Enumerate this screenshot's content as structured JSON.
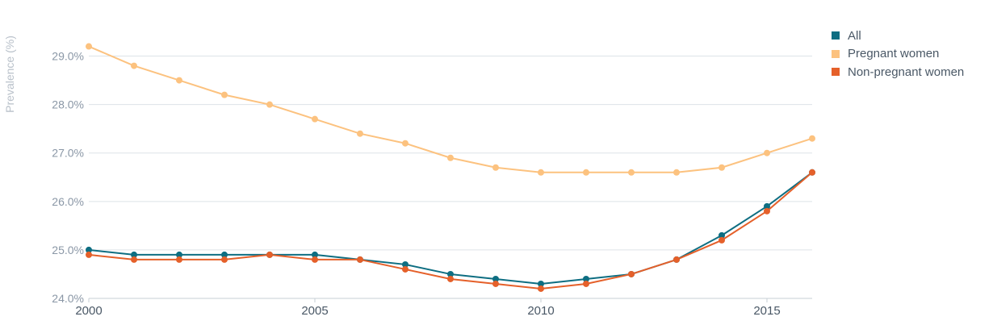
{
  "colors": {
    "all": "#0e6e82",
    "pregnant": "#fcc27f",
    "nonpregnant": "#e5602a",
    "grid": "#dde3e8",
    "axis": "#c7cfd6"
  },
  "chart_data": {
    "type": "line",
    "title": "",
    "xlabel": "",
    "ylabel": "Prevalence (%)",
    "x": [
      2000,
      2001,
      2002,
      2003,
      2004,
      2005,
      2006,
      2007,
      2008,
      2009,
      2010,
      2011,
      2012,
      2013,
      2014,
      2015,
      2016
    ],
    "xlim": [
      2000,
      2016
    ],
    "ylim": [
      24.0,
      29.6
    ],
    "x_ticks": [
      2000,
      2005,
      2010,
      2015
    ],
    "x_tick_labels": [
      "2000",
      "2005",
      "2010",
      "2015"
    ],
    "y_ticks": [
      24.0,
      25.0,
      26.0,
      27.0,
      28.0,
      29.0
    ],
    "y_tick_labels": [
      "24.0%",
      "25.0%",
      "26.0%",
      "27.0%",
      "28.0%",
      "29.0%"
    ],
    "grid": true,
    "legend_position": "top-right",
    "series": [
      {
        "name": "All",
        "key": "all",
        "values": [
          25.0,
          24.9,
          24.9,
          24.9,
          24.9,
          24.9,
          24.8,
          24.7,
          24.5,
          24.4,
          24.3,
          24.4,
          24.5,
          24.8,
          25.3,
          25.9,
          26.6
        ]
      },
      {
        "name": "Pregnant women",
        "key": "pregnant",
        "values": [
          29.2,
          28.8,
          28.5,
          28.2,
          28.0,
          27.7,
          27.4,
          27.2,
          26.9,
          26.7,
          26.6,
          26.6,
          26.6,
          26.6,
          26.7,
          27.0,
          27.3
        ]
      },
      {
        "name": "Non-pregnant women",
        "key": "nonpregnant",
        "values": [
          24.9,
          24.8,
          24.8,
          24.8,
          24.9,
          24.8,
          24.8,
          24.6,
          24.4,
          24.3,
          24.2,
          24.3,
          24.5,
          24.8,
          25.2,
          25.8,
          26.6
        ]
      }
    ]
  }
}
